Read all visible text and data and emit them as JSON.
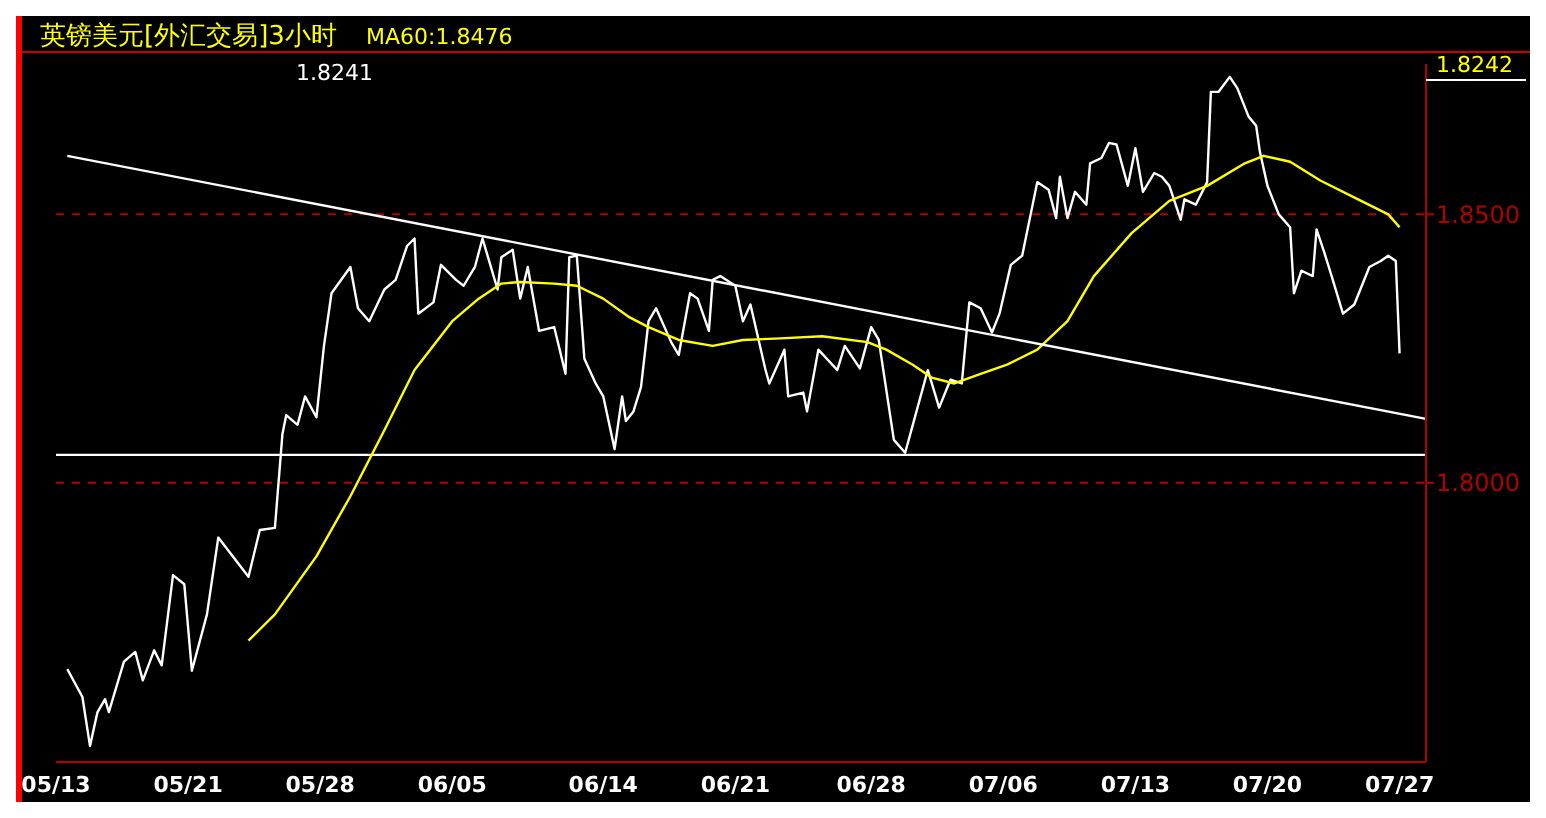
{
  "chart_data": {
    "type": "line",
    "title": "英镑美元[外汇交易]3小时",
    "annotations": [
      "1.8241",
      "1.8242"
    ],
    "categories": [
      "05/13",
      null,
      null,
      null,
      null,
      null,
      null,
      null,
      null,
      null,
      null,
      null,
      null,
      null,
      null,
      null,
      null,
      null,
      null,
      null,
      null,
      null,
      null,
      null,
      null,
      null,
      null,
      null,
      null,
      null,
      null,
      null,
      null,
      null,
      null,
      "05/21",
      null,
      null,
      null,
      null,
      null,
      null,
      null,
      null,
      null,
      null,
      null,
      null,
      null,
      null,
      null,
      null,
      null,
      null,
      null,
      null,
      null,
      null,
      null,
      null,
      null,
      null,
      null,
      null,
      null,
      null,
      null,
      null,
      null,
      null,
      "05/28",
      null,
      null,
      null,
      null,
      null,
      null,
      null,
      null,
      null,
      null,
      null,
      null,
      null,
      null,
      null,
      null,
      null,
      null,
      null,
      null,
      null,
      null,
      null,
      null,
      null,
      null,
      null,
      null,
      null,
      null,
      null,
      null,
      null,
      null,
      "06/05",
      null,
      null,
      null,
      null,
      null,
      null,
      null,
      null,
      null,
      null,
      null,
      null,
      null,
      null,
      null,
      null,
      null,
      null,
      null,
      null,
      null,
      null,
      null,
      null,
      null,
      null,
      null,
      null,
      null,
      null,
      null,
      null,
      null,
      null,
      null,
      null,
      null,
      null,
      null,
      "06/14",
      null,
      null,
      null,
      null,
      null,
      null,
      null,
      null,
      null,
      null,
      null,
      null,
      null,
      null,
      null,
      null,
      null,
      null,
      null,
      null,
      null,
      null,
      null,
      null,
      null,
      null,
      null,
      null,
      null,
      null,
      null,
      null,
      null,
      null,
      "06/21",
      null,
      null,
      null,
      null,
      null,
      null,
      null,
      null,
      null,
      null,
      null,
      null,
      null,
      null,
      null,
      null,
      null,
      null,
      null,
      null,
      null,
      null,
      null,
      null,
      null,
      null,
      null,
      null,
      null,
      null,
      null,
      null,
      null,
      null,
      null,
      "06/28",
      null,
      null,
      null,
      null,
      null,
      null,
      null,
      null,
      null,
      null,
      null,
      null,
      null,
      null,
      null,
      null,
      null,
      null,
      null,
      null,
      null,
      null,
      null,
      null,
      null,
      null,
      null,
      null,
      null,
      null,
      null,
      null,
      null,
      null,
      "07/06",
      null,
      null,
      null,
      null,
      null,
      null,
      null,
      null,
      null,
      null,
      null,
      null,
      null,
      null,
      null,
      null,
      null,
      null,
      null,
      null,
      null,
      null,
      null,
      null,
      null,
      null,
      null,
      null,
      null,
      null,
      null,
      null,
      null,
      null,
      "07/13",
      null,
      null,
      null,
      null,
      null,
      null,
      null,
      null,
      null,
      null,
      null,
      null,
      null,
      null,
      null,
      null,
      null,
      null,
      null,
      null,
      null,
      null,
      null,
      null,
      null,
      null,
      null,
      null,
      null,
      null,
      null,
      null,
      null,
      null,
      "07/20",
      null,
      null,
      null,
      null,
      null,
      null,
      null,
      null,
      null,
      null,
      null,
      null,
      null,
      null,
      null,
      null,
      null,
      null,
      null,
      null,
      null,
      null,
      null,
      null,
      null,
      null,
      null,
      null,
      null,
      null,
      null,
      null,
      null,
      null,
      "07/27",
      null,
      null,
      null,
      null,
      null,
      null,
      null
    ],
    "ylim": [
      1.748,
      1.878
    ],
    "yticks": [
      {
        "value": 1.8,
        "label": "1.8000"
      },
      {
        "value": 1.85,
        "label": "1.8500"
      }
    ],
    "grid": "y",
    "legend": "top left",
    "ref_lines": [
      {
        "axis": "y",
        "value": 1.8052,
        "color": "#ffffff"
      }
    ],
    "series": [
      {
        "color": "#ffffff",
        "values": [
          null,
          null,
          null,
          1.7653,
          null,
          null,
          null,
          1.7601,
          null,
          1.751,
          null,
          1.7573,
          null,
          1.7597,
          1.7573,
          null,
          null,
          null,
          1.7667,
          null,
          null,
          1.7685,
          null,
          1.7632,
          null,
          null,
          1.7688,
          null,
          1.766,
          null,
          null,
          1.7828,
          null,
          null,
          1.7811,
          null,
          1.765,
          null,
          null,
          null,
          1.7755,
          null,
          null,
          1.7898,
          null,
          null,
          null,
          null,
          null,
          null,
          null,
          1.7825,
          null,
          null,
          1.7912,
          null,
          null,
          null,
          1.7916,
          null,
          1.8091,
          1.8126,
          null,
          null,
          1.8108,
          null,
          1.8161,
          null,
          null,
          1.8122,
          null,
          1.8255,
          null,
          1.8353,
          null,
          null,
          null,
          null,
          1.8402,
          null,
          1.8325,
          null,
          null,
          1.8301,
          null,
          null,
          null,
          1.836,
          null,
          null,
          1.8378,
          null,
          null,
          1.8441,
          null,
          1.8455,
          1.8315,
          null,
          null,
          null,
          1.8336,
          null,
          1.8406,
          null,
          null,
          null,
          1.8378,
          null,
          1.8367,
          null,
          null,
          1.8402,
          null,
          1.8455,
          null,
          null,
          null,
          1.836,
          1.842,
          null,
          null,
          1.8434,
          null,
          1.8343,
          null,
          1.8402,
          null,
          null,
          1.8283,
          null,
          null,
          null,
          1.829,
          null,
          null,
          1.8203,
          1.842,
          null,
          1.8423,
          null,
          1.8231,
          null,
          null,
          1.8185,
          null,
          1.8161,
          null,
          null,
          1.8063,
          null,
          1.8161,
          1.8115,
          null,
          1.8133,
          null,
          1.8178,
          null,
          1.8301,
          null,
          1.8325,
          null,
          null,
          null,
          1.8262,
          null,
          1.8238,
          null,
          null,
          1.8353,
          null,
          1.8343,
          null,
          null,
          1.8283,
          1.8378,
          null,
          1.8385,
          null,
          null,
          null,
          1.8367,
          null,
          1.8301,
          null,
          1.8332,
          null,
          null,
          null,
          1.821,
          1.8185,
          null,
          null,
          null,
          1.8248,
          1.8161,
          null,
          null,
          null,
          1.8168,
          1.8133,
          null,
          null,
          1.8248,
          null,
          null,
          null,
          null,
          1.821,
          null,
          1.8255,
          null,
          null,
          null,
          1.8213,
          null,
          null,
          1.829,
          null,
          1.8266,
          null,
          null,
          null,
          1.808,
          null,
          null,
          1.8056,
          null,
          null,
          1.8133,
          null,
          null,
          1.821,
          null,
          null,
          1.814,
          null,
          null,
          1.8192,
          null,
          null,
          1.8185,
          null,
          1.8336,
          null,
          null,
          1.8325,
          null,
          null,
          1.828,
          null,
          1.8315,
          null,
          null,
          1.8406,
          null,
          null,
          1.8423,
          null,
          null,
          null,
          1.856,
          null,
          null,
          1.8546,
          null,
          1.8493,
          1.857,
          null,
          1.8493,
          null,
          1.8542,
          null,
          null,
          1.8518,
          1.8595,
          null,
          null,
          1.8605,
          null,
          1.8633,
          null,
          1.863,
          null,
          null,
          1.8553,
          null,
          1.8623,
          null,
          1.8542,
          null,
          null,
          1.8577,
          null,
          1.857,
          null,
          1.8553,
          null,
          null,
          1.849,
          1.8528,
          null,
          null,
          1.8518,
          null,
          null,
          1.856,
          1.8728,
          null,
          1.8728,
          null,
          null,
          1.8756,
          null,
          1.8735,
          null,
          null,
          1.8682,
          null,
          1.8665,
          1.8616,
          null,
          1.8553,
          null,
          null,
          1.85,
          null,
          null,
          1.8476,
          1.8353,
          null,
          1.8395,
          null,
          null,
          1.8385,
          1.8472,
          null,
          1.843,
          null,
          1.8385,
          null,
          null,
          1.8315,
          null,
          null,
          1.8332,
          null,
          null,
          null,
          1.8402,
          null,
          null,
          1.8413,
          null,
          1.8423,
          null,
          1.8413,
          1.8241,
          null,
          null,
          null,
          null,
          null,
          null,
          null
        ]
      },
      {
        "name": "MA60:1.8476",
        "color": "#ffff00",
        "values": [
          null,
          null,
          null,
          null,
          null,
          null,
          null,
          null,
          null,
          null,
          null,
          null,
          null,
          null,
          null,
          null,
          null,
          null,
          null,
          null,
          null,
          null,
          null,
          null,
          null,
          null,
          null,
          null,
          null,
          null,
          null,
          null,
          null,
          null,
          null,
          null,
          null,
          null,
          null,
          null,
          null,
          null,
          null,
          null,
          null,
          null,
          null,
          null,
          null,
          null,
          null,
          1.7706,
          null,
          null,
          null,
          null,
          null,
          null,
          1.7755,
          null,
          null,
          null,
          null,
          null,
          null,
          null,
          null,
          null,
          null,
          1.7863,
          null,
          null,
          null,
          null,
          null,
          null,
          null,
          null,
          1.7975,
          null,
          null,
          null,
          null,
          null,
          null,
          null,
          null,
          1.8098,
          null,
          null,
          null,
          null,
          null,
          null,
          null,
          1.821,
          null,
          null,
          null,
          null,
          null,
          null,
          null,
          null,
          null,
          1.8301,
          null,
          null,
          null,
          null,
          null,
          null,
          1.8343,
          null,
          null,
          null,
          null,
          null,
          1.8371,
          null,
          null,
          null,
          null,
          1.8374,
          null,
          null,
          null,
          null,
          null,
          null,
          null,
          null,
          1.8371,
          null,
          null,
          null,
          null,
          null,
          1.8367,
          null,
          null,
          null,
          null,
          null,
          null,
          1.8343,
          null,
          null,
          null,
          null,
          null,
          null,
          1.8308,
          null,
          null,
          null,
          null,
          1.829,
          null,
          null,
          null,
          null,
          null,
          null,
          null,
          1.8266,
          null,
          null,
          null,
          null,
          null,
          null,
          null,
          null,
          1.8255,
          null,
          null,
          null,
          null,
          null,
          null,
          null,
          1.8266,
          null,
          null,
          null,
          null,
          null,
          null,
          null,
          null,
          null,
          1.8269,
          null,
          null,
          null,
          null,
          null,
          null,
          null,
          null,
          null,
          null,
          1.8273,
          null,
          null,
          null,
          null,
          null,
          null,
          null,
          null,
          null,
          null,
          null,
          1.8262,
          null,
          null,
          null,
          null,
          1.8248,
          null,
          null,
          null,
          null,
          null,
          null,
          1.822,
          null,
          null,
          null,
          null,
          1.8196,
          null,
          null,
          null,
          null,
          null,
          1.8185,
          null,
          null,
          null,
          null,
          null,
          null,
          1.8203,
          null,
          null,
          null,
          null,
          null,
          null,
          1.822,
          null,
          null,
          null,
          null,
          null,
          null,
          null,
          1.8248,
          null,
          null,
          null,
          null,
          null,
          null,
          null,
          1.8301,
          null,
          null,
          null,
          null,
          null,
          null,
          1.8385,
          null,
          null,
          null,
          null,
          null,
          null,
          null,
          null,
          null,
          1.8465,
          null,
          null,
          null,
          null,
          null,
          null,
          null,
          null,
          null,
          1.8525,
          null,
          null,
          null,
          null,
          null,
          null,
          null,
          null,
          null,
          1.8553,
          null,
          null,
          null,
          null,
          null,
          null,
          null,
          null,
          null,
          1.8595,
          null,
          null,
          null,
          null,
          1.8609,
          null,
          null,
          null,
          null,
          null,
          null,
          1.8598,
          null,
          null,
          null,
          null,
          null,
          null,
          null,
          1.8563,
          null,
          null,
          null,
          null,
          null,
          null,
          null,
          null,
          null,
          1.8528,
          null,
          null,
          null,
          null,
          null,
          null,
          null,
          1.85,
          null,
          null,
          1.8476,
          null,
          null,
          null,
          null,
          null,
          null,
          null
        ]
      },
      {
        "color": "#ffffff",
        "values": [
          null,
          null,
          null,
          1.8609,
          null,
          null,
          null,
          null,
          null,
          null,
          null,
          null,
          null,
          null,
          null,
          null,
          null,
          null,
          null,
          null,
          null,
          null,
          null,
          null,
          null,
          null,
          null,
          null,
          null,
          null,
          null,
          null,
          null,
          null,
          null,
          null,
          null,
          null,
          null,
          null,
          null,
          null,
          null,
          null,
          null,
          null,
          null,
          null,
          null,
          null,
          null,
          null,
          null,
          null,
          null,
          null,
          null,
          null,
          null,
          null,
          null,
          null,
          null,
          null,
          null,
          null,
          null,
          null,
          null,
          null,
          null,
          null,
          null,
          null,
          null,
          null,
          null,
          null,
          null,
          null,
          null,
          null,
          null,
          null,
          null,
          null,
          null,
          null,
          null,
          null,
          null,
          null,
          null,
          null,
          null,
          null,
          null,
          null,
          null,
          null,
          null,
          null,
          null,
          null,
          null,
          null,
          null,
          null,
          null,
          null,
          null,
          null,
          null,
          null,
          null,
          null,
          null,
          null,
          null,
          null,
          null,
          null,
          null,
          null,
          null,
          null,
          null,
          null,
          null,
          null,
          null,
          null,
          null,
          null,
          null,
          null,
          null,
          null,
          null,
          null,
          null,
          null,
          null,
          null,
          null,
          null,
          null,
          null,
          null,
          null,
          null,
          null,
          null,
          null,
          null,
          null,
          null,
          null,
          null,
          null,
          null,
          null,
          null,
          null,
          null,
          null,
          null,
          null,
          null,
          null,
          null,
          null,
          null,
          null,
          null,
          null,
          null,
          null,
          null,
          null,
          null,
          null,
          null,
          null,
          null,
          null,
          null,
          null,
          null,
          null,
          null,
          null,
          null,
          null,
          null,
          null,
          null,
          null,
          null,
          null,
          null,
          null,
          null,
          null,
          null,
          null,
          null,
          null,
          null,
          null,
          null,
          null,
          null,
          null,
          null,
          null,
          null,
          null,
          null,
          null,
          null,
          null,
          null,
          null,
          null,
          null,
          null,
          null,
          null,
          null,
          null,
          null,
          null,
          null,
          null,
          null,
          null,
          null,
          null,
          null,
          null,
          null,
          null,
          null,
          null,
          null,
          null,
          null,
          null,
          null,
          null,
          null,
          null,
          null,
          null,
          null,
          null,
          null,
          null,
          null,
          null,
          null,
          null,
          null,
          null,
          null,
          null,
          null,
          null,
          null,
          null,
          null,
          null,
          null,
          null,
          null,
          null,
          null,
          null,
          null,
          null,
          null,
          null,
          null,
          null,
          null,
          null,
          null,
          null,
          null,
          null,
          null,
          null,
          null,
          null,
          null,
          null,
          null,
          null,
          null,
          null,
          null,
          null,
          null,
          null,
          null,
          null,
          null,
          null,
          null,
          null,
          null,
          null,
          null,
          null,
          null,
          null,
          null,
          null,
          null,
          null,
          null,
          null,
          null,
          null,
          null,
          null,
          null,
          null,
          null,
          null,
          null,
          null,
          null,
          null,
          null,
          null,
          null,
          null,
          null,
          null,
          null,
          null,
          null,
          null,
          null,
          null,
          null,
          null,
          null,
          null,
          null,
          null,
          null,
          null,
          null,
          null,
          null,
          null,
          null,
          null,
          null,
          null,
          1.8119
        ]
      }
    ]
  }
}
